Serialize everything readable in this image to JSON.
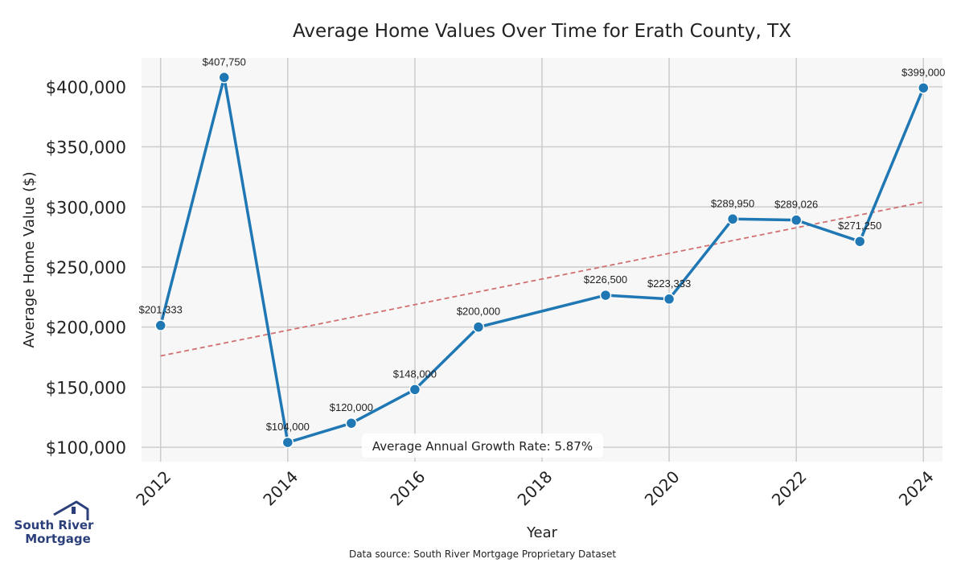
{
  "chart_data": {
    "type": "line",
    "title": "Average Home Values Over Time for Erath County, TX",
    "xlabel": "Year",
    "ylabel": "Average Home Value ($)",
    "x": [
      2012,
      2013,
      2014,
      2015,
      2016,
      2017,
      2019,
      2020,
      2021,
      2022,
      2023,
      2024
    ],
    "values": [
      201333,
      407750,
      104000,
      120000,
      148000,
      200000,
      226500,
      223333,
      289950,
      289026,
      271250,
      399000
    ],
    "data_labels": [
      "$201,333",
      "$407,750",
      "$104,000",
      "$120,000",
      "$148,000",
      "$200,000",
      "$226,500",
      "$223,333",
      "$289,950",
      "$289,026",
      "$271,250",
      "$399,000"
    ],
    "xlim": [
      2011.7,
      2024.3
    ],
    "ylim": [
      88000,
      424000
    ],
    "x_ticks": [
      2012,
      2014,
      2016,
      2018,
      2020,
      2022,
      2024
    ],
    "y_ticks": [
      100000,
      150000,
      200000,
      250000,
      300000,
      350000,
      400000
    ],
    "y_tick_labels": [
      "$100,000",
      "$150,000",
      "$200,000",
      "$250,000",
      "$300,000",
      "$350,000",
      "$400,000"
    ],
    "trend_line": {
      "x": [
        2012,
        2024
      ],
      "y": [
        176000,
        304000
      ]
    },
    "grid": true,
    "annotation": "Average Annual Growth Rate: 5.87%",
    "source": "Data source: South River Mortgage Proprietary Dataset",
    "colors": {
      "line": "#1f77b4",
      "trend": "#d07070",
      "grid": "#cccccc",
      "plot_bg": "#f7f7f7",
      "logo": "#2b3f7a"
    }
  },
  "logo": {
    "line1": "South River",
    "line2": "Mortgage",
    "icon": "house-roof-icon"
  }
}
